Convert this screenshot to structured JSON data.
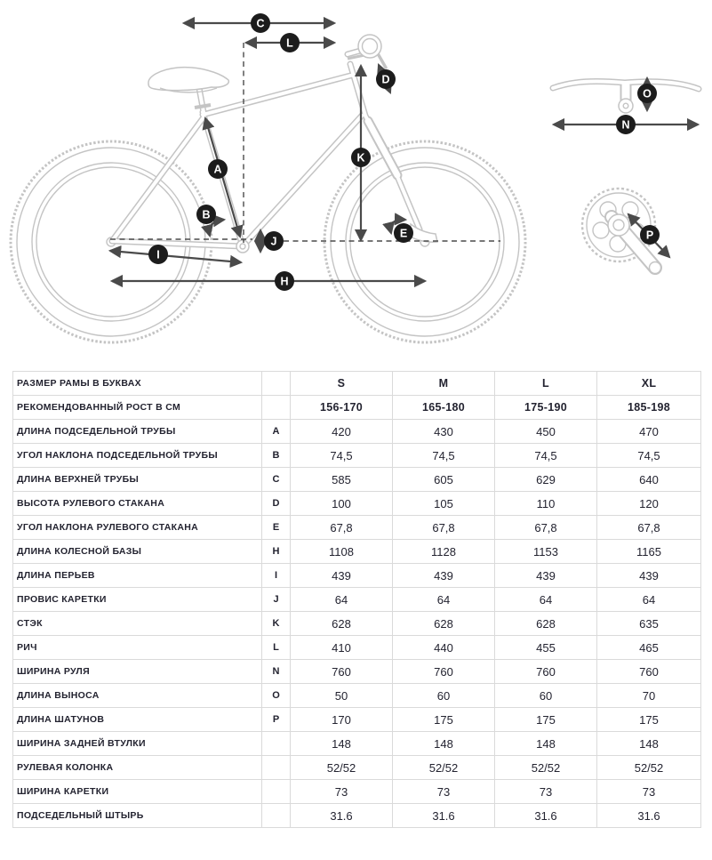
{
  "diagram": {
    "markers": {
      "a": "A",
      "b": "B",
      "c": "C",
      "d": "D",
      "e": "E",
      "h": "H",
      "i": "I",
      "j": "J",
      "k": "K",
      "l": "L",
      "n": "N",
      "o": "O",
      "p": "P"
    }
  },
  "table": {
    "rows": [
      {
        "label": "РАЗМЕР РАМЫ В БУКВАХ",
        "letter": "",
        "values": [
          "S",
          "M",
          "L",
          "XL"
        ]
      },
      {
        "label": "РЕКОМЕНДОВАННЫЙ РОСТ В СМ",
        "letter": "",
        "values": [
          "156-170",
          "165-180",
          "175-190",
          "185-198"
        ]
      },
      {
        "label": "ДЛИНА ПОДСЕДЕЛЬНОЙ ТРУБЫ",
        "letter": "A",
        "values": [
          "420",
          "430",
          "450",
          "470"
        ]
      },
      {
        "label": "УГОЛ НАКЛОНА ПОДСЕДЕЛЬНОЙ ТРУБЫ",
        "letter": "B",
        "values": [
          "74,5",
          "74,5",
          "74,5",
          "74,5"
        ]
      },
      {
        "label": "ДЛИНА ВЕРХНЕЙ ТРУБЫ",
        "letter": "C",
        "values": [
          "585",
          "605",
          "629",
          "640"
        ]
      },
      {
        "label": "ВЫСОТА РУЛЕВОГО СТАКАНА",
        "letter": "D",
        "values": [
          "100",
          "105",
          "110",
          "120"
        ]
      },
      {
        "label": "УГОЛ НАКЛОНА РУЛЕВОГО СТАКАНА",
        "letter": "E",
        "values": [
          "67,8",
          "67,8",
          "67,8",
          "67,8"
        ]
      },
      {
        "label": "ДЛИНА КОЛЕСНОЙ БАЗЫ",
        "letter": "H",
        "values": [
          "1108",
          "1128",
          "1153",
          "1165"
        ]
      },
      {
        "label": "ДЛИНА ПЕРЬЕВ",
        "letter": "I",
        "values": [
          "439",
          "439",
          "439",
          "439"
        ]
      },
      {
        "label": "ПРОВИС КАРЕТКИ",
        "letter": "J",
        "values": [
          "64",
          "64",
          "64",
          "64"
        ]
      },
      {
        "label": "СТЭК",
        "letter": "K",
        "values": [
          "628",
          "628",
          "628",
          "635"
        ]
      },
      {
        "label": "РИЧ",
        "letter": "L",
        "values": [
          "410",
          "440",
          "455",
          "465"
        ]
      },
      {
        "label": "ШИРИНА РУЛЯ",
        "letter": "N",
        "values": [
          "760",
          "760",
          "760",
          "760"
        ]
      },
      {
        "label": "ДЛИНА ВЫНОСА",
        "letter": "O",
        "values": [
          "50",
          "60",
          "60",
          "70"
        ]
      },
      {
        "label": "ДЛИНА ШАТУНОВ",
        "letter": "P",
        "values": [
          "170",
          "175",
          "175",
          "175"
        ]
      },
      {
        "label": "ШИРИНА ЗАДНЕЙ ВТУЛКИ",
        "letter": "",
        "values": [
          "148",
          "148",
          "148",
          "148"
        ]
      },
      {
        "label": "РУЛЕВАЯ КОЛОНКА",
        "letter": "",
        "values": [
          "52/52",
          "52/52",
          "52/52",
          "52/52"
        ]
      },
      {
        "label": "ШИРИНА КАРЕТКИ",
        "letter": "",
        "values": [
          "73",
          "73",
          "73",
          "73"
        ]
      },
      {
        "label": "ПОДСЕДЕЛЬНЫЙ ШТЫРЬ",
        "letter": "",
        "values": [
          "31.6",
          "31.6",
          "31.6",
          "31.6"
        ]
      }
    ]
  },
  "colors": {
    "badge": "#1c1c1c",
    "arrow": "#4a4a4a",
    "bike_outline": "#c4c4c4",
    "table_border": "#dadada",
    "text": "#232330"
  }
}
